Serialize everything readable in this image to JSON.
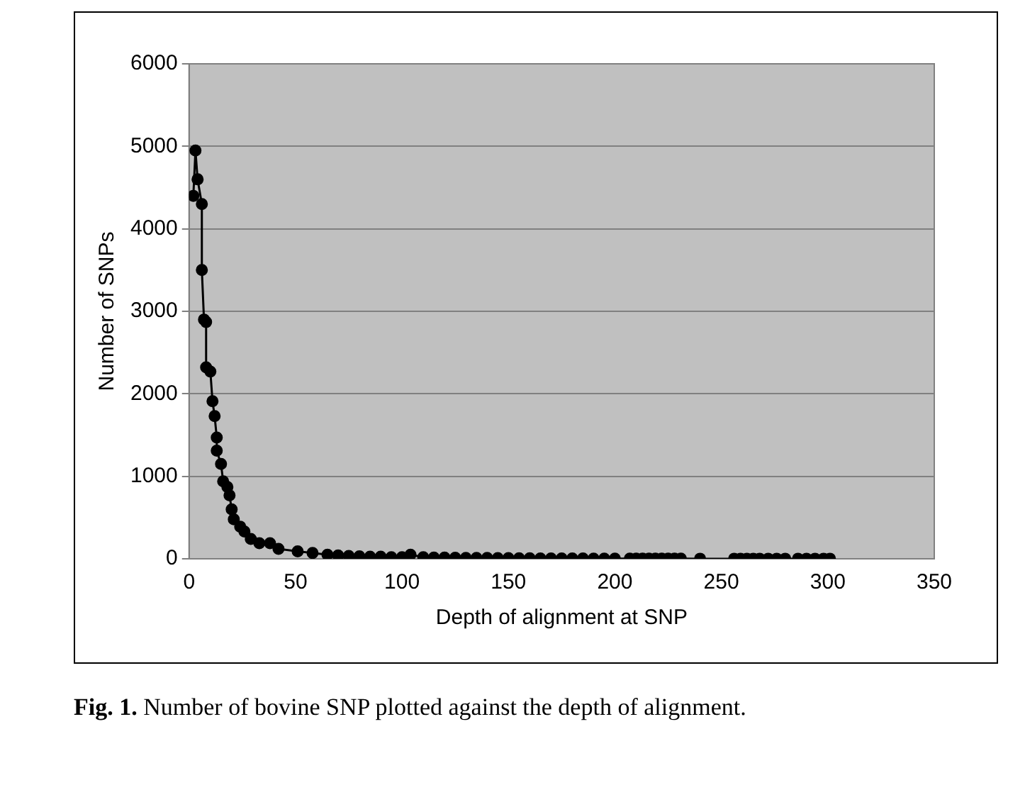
{
  "chart_data": {
    "type": "line",
    "xlabel": "Depth of alignment at SNP",
    "ylabel": "Number of SNPs",
    "x": [
      2,
      3,
      4,
      6,
      6,
      7,
      8,
      8,
      10,
      11,
      12,
      13,
      13,
      15,
      16,
      18,
      19,
      20,
      21,
      24,
      26,
      29,
      33,
      38,
      42,
      51,
      58,
      65,
      70,
      75,
      80,
      85,
      90,
      95,
      100,
      104,
      110,
      115,
      120,
      125,
      130,
      135,
      140,
      145,
      150,
      155,
      160,
      165,
      170,
      175,
      180,
      185,
      190,
      195,
      200,
      207,
      210,
      213,
      216,
      219,
      222,
      225,
      228,
      231,
      240,
      256,
      259,
      262,
      265,
      268,
      272,
      276,
      280,
      286,
      290,
      294,
      298,
      301
    ],
    "values": [
      4400,
      4950,
      4600,
      4300,
      3500,
      2900,
      2870,
      2320,
      2270,
      1910,
      1730,
      1470,
      1310,
      1150,
      940,
      870,
      770,
      600,
      480,
      390,
      330,
      240,
      190,
      190,
      120,
      90,
      70,
      50,
      40,
      35,
      30,
      25,
      25,
      20,
      20,
      50,
      20,
      15,
      15,
      12,
      10,
      10,
      10,
      8,
      8,
      6,
      6,
      5,
      5,
      4,
      4,
      4,
      3,
      3,
      3,
      2,
      2,
      2,
      2,
      2,
      2,
      2,
      2,
      2,
      1,
      1,
      1,
      1,
      1,
      1,
      1,
      1,
      1,
      1,
      1,
      1,
      1,
      1
    ],
    "color": "#000000",
    "marker": "circle",
    "line_style": "solid",
    "xlim": [
      0,
      350
    ],
    "xticks": [
      0,
      50,
      100,
      150,
      200,
      250,
      300,
      350
    ],
    "ylim": [
      0,
      6000
    ],
    "yticks": [
      0,
      1000,
      2000,
      3000,
      4000,
      5000,
      6000
    ],
    "grid": "y",
    "legend": false,
    "annotations": [
      "Fig. 1. Number of bovine SNP plotted against the depth of alignment."
    ]
  }
}
